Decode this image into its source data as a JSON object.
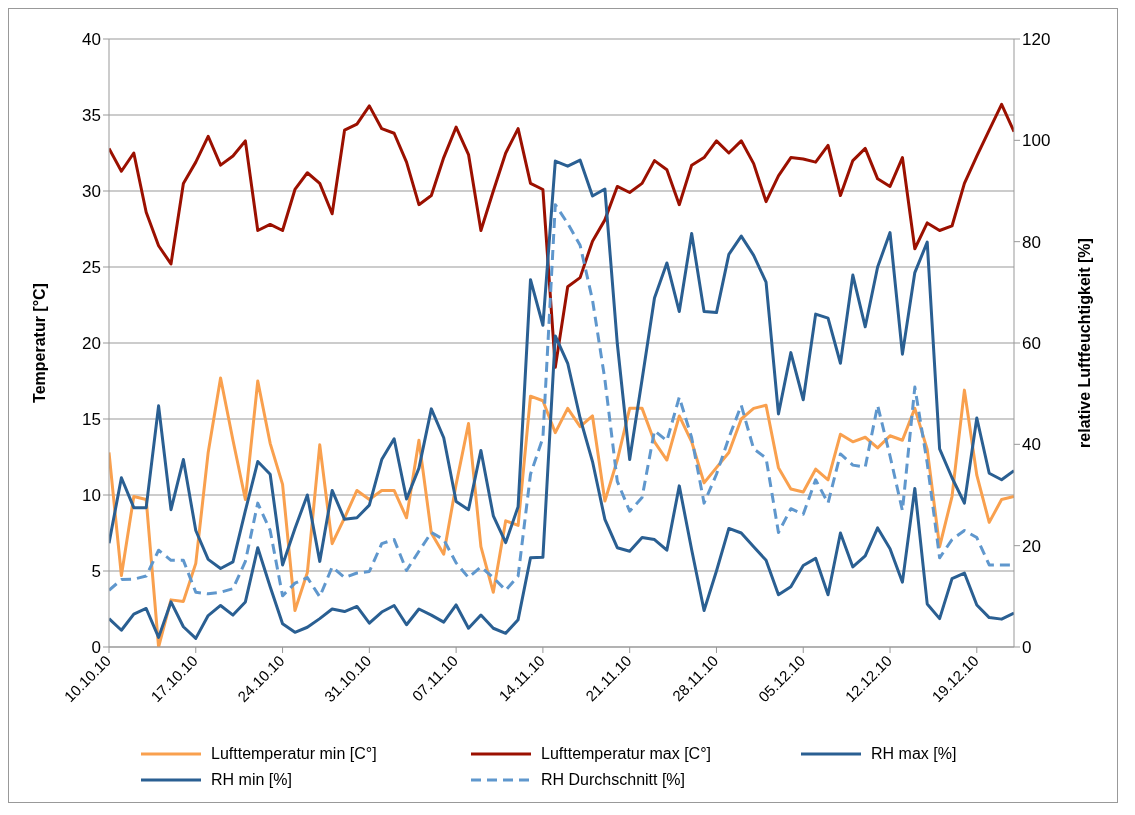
{
  "chart_data": {
    "type": "line",
    "ylabel": "Temperatur [°C]",
    "y2label": "relative Luftfeuchtigkeit [%]",
    "x": [
      "--10-10",
      "--10-11",
      "--10-12",
      "--10-13",
      "--10-14",
      "--10-15",
      "--10-16",
      "--10-17",
      "--10-18",
      "--10-19",
      "--10-20",
      "--10-21",
      "--10-22",
      "--10-23",
      "--10-24",
      "--10-25",
      "--10-26",
      "--10-27",
      "--10-28",
      "--10-29",
      "--10-30",
      "--10-31",
      "--11-01",
      "--11-02",
      "--11-03",
      "--11-04",
      "--11-05",
      "--11-06",
      "--11-07",
      "--11-08",
      "--11-09",
      "--11-10",
      "--11-11",
      "--11-12",
      "--11-13",
      "--11-14",
      "--11-15",
      "--11-16",
      "--11-17",
      "--11-18",
      "--11-19",
      "--11-20",
      "--11-21",
      "--11-22",
      "--11-23",
      "--11-24",
      "--11-25",
      "--11-26",
      "--11-27",
      "--11-28",
      "--11-29",
      "--11-30",
      "--12-01",
      "--12-02",
      "--12-03",
      "--12-04",
      "--12-05",
      "--12-06",
      "--12-07",
      "--12-08",
      "--12-09",
      "--12-10",
      "--12-11",
      "--12-12",
      "--12-13",
      "--12-14",
      "--12-15",
      "--12-16",
      "--12-17",
      "--12-18",
      "--12-19",
      "--12-20",
      "--12-21",
      "--12-22"
    ],
    "series": [
      {
        "name": "Lufttemperatur min [C°]",
        "color": "#f9a04e",
        "values": [
          12.8,
          4.7,
          9.9,
          9.7,
          0.0,
          3.1,
          3.0,
          5.5,
          12.8,
          17.7,
          13.6,
          9.7,
          17.5,
          13.4,
          10.7,
          2.4,
          4.9,
          13.3,
          6.8,
          8.5,
          10.3,
          9.7,
          10.3,
          10.3,
          8.5,
          13.6,
          7.5,
          6.1,
          10.7,
          14.7,
          6.6,
          3.6,
          8.3,
          8.0,
          16.5,
          16.2,
          14.1,
          15.7,
          14.5,
          15.2,
          9.6,
          12.3,
          15.7,
          15.7,
          13.5,
          12.3,
          15.2,
          13.5,
          10.8,
          11.8,
          12.8,
          15.0,
          15.7,
          15.9,
          11.8,
          10.4,
          10.2,
          11.7,
          11.0,
          14.0,
          13.5,
          13.8,
          13.1,
          13.9,
          13.6,
          15.7,
          13.0,
          6.6,
          9.9,
          16.9,
          11.3,
          8.2,
          9.7,
          9.9
        ]
      },
      {
        "name": "Lufttemperatur max [C°]",
        "color": "#9b1000",
        "values": [
          32.8,
          31.3,
          32.5,
          28.6,
          26.4,
          25.2,
          30.5,
          31.9,
          33.6,
          31.7,
          32.3,
          33.3,
          27.4,
          27.8,
          27.4,
          30.1,
          31.2,
          30.5,
          28.5,
          34.0,
          34.4,
          35.6,
          34.1,
          33.8,
          31.9,
          29.1,
          29.7,
          32.2,
          34.2,
          32.4,
          27.4,
          30.0,
          32.5,
          34.1,
          30.5,
          30.1,
          18.4,
          23.7,
          24.3,
          26.7,
          28.1,
          30.3,
          29.9,
          30.5,
          32.0,
          31.4,
          29.1,
          31.7,
          32.2,
          33.3,
          32.5,
          33.3,
          31.8,
          29.3,
          31.0,
          32.2,
          32.1,
          31.9,
          33.0,
          29.7,
          32.0,
          32.8,
          30.8,
          30.3,
          32.2,
          26.2,
          27.9,
          27.4,
          27.7,
          30.5,
          32.3,
          34.0,
          35.7,
          33.9
        ]
      },
      {
        "name": "RH max [%]",
        "color": "#2a5f92",
        "axis": "y2",
        "values": [
          20.5,
          33.4,
          27.5,
          27.5,
          47.6,
          27.1,
          37.0,
          23.0,
          17.3,
          15.5,
          16.8,
          26.9,
          36.6,
          34.1,
          16.2,
          23.4,
          30.0,
          16.9,
          30.9,
          25.2,
          25.5,
          28.0,
          37.0,
          41.1,
          29.2,
          35.3,
          47.0,
          41.3,
          28.7,
          27.1,
          38.8,
          25.9,
          20.6,
          27.7,
          72.5,
          63.5,
          95.9,
          94.9,
          96.1,
          89.0,
          90.4,
          59.9,
          37.0,
          52.8,
          68.9,
          75.8,
          66.2,
          81.6,
          66.2,
          66.0,
          77.5,
          81.1,
          77.3,
          72.0,
          46.0,
          58.1,
          48.8,
          65.7,
          64.9,
          56.0,
          73.4,
          63.2,
          75.0,
          81.8,
          57.8,
          73.9,
          79.9,
          39.1,
          33.4,
          28.4,
          45.2,
          34.3,
          33.0,
          34.8
        ]
      },
      {
        "name": "RH min [%]",
        "color": "#2a5f92",
        "axis": "y2",
        "values": [
          5.6,
          3.3,
          6.5,
          7.6,
          1.9,
          8.9,
          4.0,
          1.7,
          6.2,
          8.2,
          6.3,
          8.9,
          19.6,
          11.9,
          4.6,
          2.9,
          3.9,
          5.6,
          7.5,
          7.0,
          8.0,
          4.7,
          6.9,
          8.2,
          4.4,
          7.5,
          6.3,
          4.9,
          8.3,
          3.7,
          6.3,
          3.7,
          2.7,
          5.4,
          17.6,
          17.7,
          61.4,
          56.0,
          45.2,
          36.6,
          25.2,
          19.6,
          18.9,
          21.6,
          21.2,
          19.1,
          31.8,
          19.2,
          7.2,
          15.0,
          23.4,
          22.5,
          19.8,
          17.1,
          10.3,
          11.9,
          16.1,
          17.5,
          10.3,
          22.5,
          15.8,
          18.0,
          23.5,
          19.4,
          12.8,
          31.3,
          8.5,
          5.6,
          13.5,
          14.6,
          8.3,
          5.8,
          5.5,
          6.7
        ]
      },
      {
        "name": "RH Durchschnitt [%]",
        "color": "#5f97cd",
        "axis": "y2",
        "line_style": "dashed",
        "values": [
          11.2,
          13.3,
          13.4,
          14.0,
          19.1,
          17.1,
          17.1,
          10.8,
          10.5,
          10.8,
          11.5,
          16.9,
          28.4,
          23.0,
          10.1,
          12.6,
          13.7,
          9.9,
          15.8,
          13.7,
          14.6,
          14.9,
          20.4,
          21.2,
          15.1,
          18.9,
          22.6,
          21.2,
          16.6,
          13.7,
          15.8,
          13.7,
          11.2,
          14.0,
          34.1,
          41.3,
          87.3,
          83.6,
          79.3,
          68.5,
          52.8,
          32.7,
          26.8,
          29.5,
          42.7,
          40.7,
          49.3,
          41.3,
          28.4,
          34.1,
          41.3,
          47.7,
          39.1,
          37.3,
          22.6,
          27.3,
          26.2,
          33.0,
          28.4,
          38.1,
          35.9,
          35.5,
          47.7,
          37.7,
          26.9,
          51.3,
          36.3,
          17.6,
          21.2,
          23.0,
          21.6,
          16.2,
          16.2,
          16.2
        ]
      }
    ],
    "xlim": [
      "--10-10",
      "--12-22"
    ],
    "xticks": [
      {
        "value": "--10-10",
        "label": "10.10.10"
      },
      {
        "value": "--10-17",
        "label": "17.10.10"
      },
      {
        "value": "--10-24",
        "label": "24.10.10"
      },
      {
        "value": "--10-31",
        "label": "31.10.10"
      },
      {
        "value": "--11-07",
        "label": "07.11.10"
      },
      {
        "value": "--11-14",
        "label": "14.11.10"
      },
      {
        "value": "--11-21",
        "label": "21.11.10"
      },
      {
        "value": "--11-28",
        "label": "28.11.10"
      },
      {
        "value": "--12-05",
        "label": "05.12.10"
      },
      {
        "value": "--12-12",
        "label": "12.12.10"
      },
      {
        "value": "--12-19",
        "label": "19.12.10"
      }
    ],
    "ylim": [
      0,
      40
    ],
    "yticks": [
      0,
      5,
      10,
      15,
      20,
      25,
      30,
      35,
      40
    ],
    "y2lim": [
      0,
      120
    ],
    "y2ticks": [
      0,
      20,
      40,
      60,
      80,
      100,
      120
    ],
    "grid": "y",
    "legend": "bottom"
  }
}
